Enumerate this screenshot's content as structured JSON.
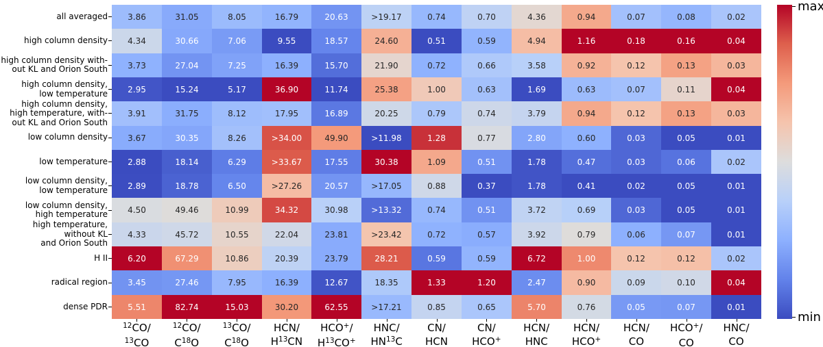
{
  "chart_data": {
    "type": "heatmap",
    "title": "",
    "colormap": "coolwarm",
    "colormap_stops": [
      "#3b4cc0",
      "#6282ea",
      "#8db0fe",
      "#b8d0f9",
      "#dddddd",
      "#f5c4ad",
      "#f49a7b",
      "#de604d",
      "#b40426"
    ],
    "normalization": "per-column min-max",
    "cell_text_dark": "#262626",
    "cell_text_light": "#ffffff",
    "rows": [
      [
        "all averaged"
      ],
      [
        "high column density"
      ],
      [
        "high column density with-",
        "out KL and Orion South"
      ],
      [
        "high column density,",
        "low temperature"
      ],
      [
        "high column density,",
        "high temperature, with-",
        "out KL and Orion South"
      ],
      [
        "low column density"
      ],
      [
        "low temperature"
      ],
      [
        "low column density,",
        "low temperature"
      ],
      [
        "low column density,",
        "high temperature"
      ],
      [
        "high temperature,",
        "without KL",
        "and Orion South"
      ],
      [
        "H II"
      ],
      [
        "radical region"
      ],
      [
        "dense PDR"
      ]
    ],
    "columns": [
      [
        "^{12}CO/",
        "^{13}CO"
      ],
      [
        "^{12}CO/",
        "C^{18}O"
      ],
      [
        "^{13}CO/",
        "C^{18}O"
      ],
      [
        "HCN/",
        "H^{13}CN"
      ],
      [
        "HCO^{+}/",
        "H^{13}CO^{+}"
      ],
      [
        "HNC/",
        "HN^{13}C"
      ],
      [
        "CN/",
        "HCN"
      ],
      [
        "CN/",
        "HCO^{+}"
      ],
      [
        "HCN/",
        "HNC"
      ],
      [
        "HCN/",
        "HCO^{+}"
      ],
      [
        "HCN/",
        "CO"
      ],
      [
        "HCO^{+}/",
        "CO"
      ],
      [
        "HNC/",
        "CO"
      ]
    ],
    "values": [
      [
        "3.86",
        "31.05",
        "8.05",
        "16.79",
        "20.63",
        ">19.17",
        "0.74",
        "0.70",
        "4.36",
        "0.94",
        "0.07",
        "0.08",
        "0.02"
      ],
      [
        "4.34",
        "30.66",
        "7.06",
        "9.55",
        "18.57",
        "24.60",
        "0.51",
        "0.59",
        "4.94",
        "1.16",
        "0.18",
        "0.16",
        "0.04"
      ],
      [
        "3.73",
        "27.04",
        "7.25",
        "16.39",
        "15.70",
        "21.90",
        "0.72",
        "0.66",
        "3.58",
        "0.92",
        "0.12",
        "0.13",
        "0.03"
      ],
      [
        "2.95",
        "15.24",
        "5.17",
        "36.90",
        "11.74",
        "25.38",
        "1.00",
        "0.63",
        "1.69",
        "0.63",
        "0.07",
        "0.11",
        "0.04"
      ],
      [
        "3.91",
        "31.75",
        "8.12",
        "17.95",
        "16.89",
        "20.25",
        "0.79",
        "0.74",
        "3.79",
        "0.94",
        "0.12",
        "0.13",
        "0.03"
      ],
      [
        "3.67",
        "30.35",
        "8.26",
        ">34.00",
        "49.90",
        ">11.98",
        "1.28",
        "0.77",
        "2.80",
        "0.60",
        "0.03",
        "0.05",
        "0.01"
      ],
      [
        "2.88",
        "18.14",
        "6.29",
        ">33.67",
        "17.55",
        "30.38",
        "1.09",
        "0.51",
        "1.78",
        "0.47",
        "0.03",
        "0.06",
        "0.02"
      ],
      [
        "2.89",
        "18.78",
        "6.50",
        ">27.26",
        "20.57",
        ">17.05",
        "0.88",
        "0.37",
        "1.78",
        "0.41",
        "0.02",
        "0.05",
        "0.01"
      ],
      [
        "4.50",
        "49.46",
        "10.99",
        "34.32",
        "30.98",
        ">13.32",
        "0.74",
        "0.51",
        "3.72",
        "0.69",
        "0.03",
        "0.05",
        "0.01"
      ],
      [
        "4.33",
        "45.72",
        "10.55",
        "22.04",
        "23.81",
        ">23.42",
        "0.72",
        "0.57",
        "3.92",
        "0.79",
        "0.06",
        "0.07",
        "0.01"
      ],
      [
        "6.20",
        "67.29",
        "10.86",
        "20.39",
        "23.79",
        "28.21",
        "0.59",
        "0.59",
        "6.72",
        "1.00",
        "0.12",
        "0.12",
        "0.02"
      ],
      [
        "3.45",
        "27.46",
        "7.95",
        "16.39",
        "12.67",
        "18.35",
        "1.33",
        "1.20",
        "2.47",
        "0.90",
        "0.09",
        "0.10",
        "0.04"
      ],
      [
        "5.51",
        "82.74",
        "15.03",
        "30.20",
        "62.55",
        ">17.21",
        "0.85",
        "0.65",
        "5.70",
        "0.76",
        "0.05",
        "0.07",
        "0.01"
      ]
    ],
    "colorbar": {
      "top_label": "max",
      "bottom_label": "min"
    },
    "layout": {
      "grid_on": false,
      "legend_position": "right-colorbar"
    }
  }
}
